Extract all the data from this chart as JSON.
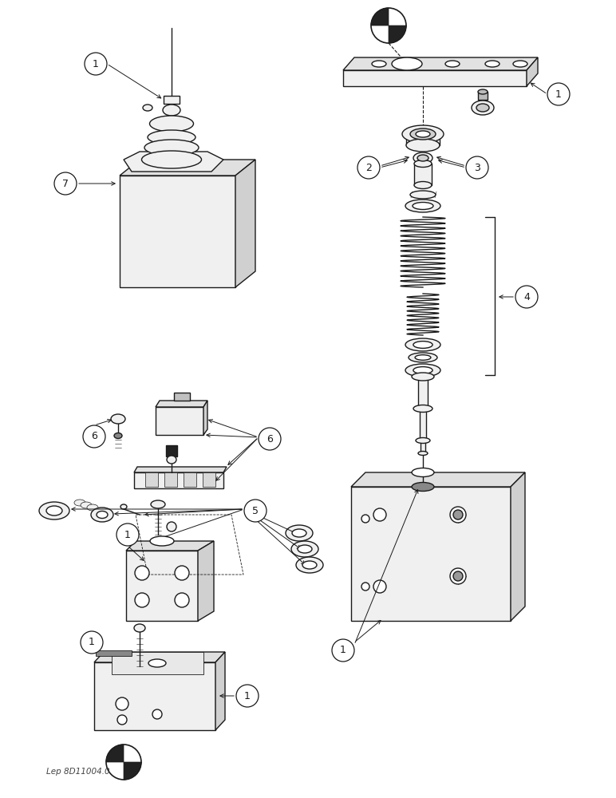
{
  "bg_color": "#ffffff",
  "figsize": [
    7.72,
    10.0
  ],
  "dpi": 100,
  "watermark": "Lep 8D11004.0",
  "line_color": "#1a1a1a",
  "fill_light": "#f0f0f0",
  "fill_white": "#ffffff",
  "fill_dark": "#222222"
}
